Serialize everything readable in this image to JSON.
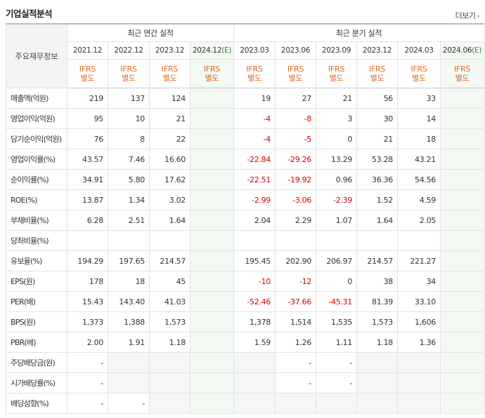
{
  "header": {
    "title": "기업실적분석",
    "more_label": "더보기",
    "more_icon": "chevron-right-icon"
  },
  "table": {
    "rowhead_label": "주요재무정보",
    "annual_group_label": "최근 연간 실적",
    "quarter_group_label": "최근 분기 실적",
    "periods": [
      {
        "label": "2021.12",
        "est": ""
      },
      {
        "label": "2022.12",
        "est": ""
      },
      {
        "label": "2023.12",
        "est": ""
      },
      {
        "label": "2024.12",
        "est": "(E)"
      },
      {
        "label": "2023.03",
        "est": ""
      },
      {
        "label": "2023.06",
        "est": ""
      },
      {
        "label": "2023.09",
        "est": ""
      },
      {
        "label": "2023.12",
        "est": ""
      },
      {
        "label": "2024.03",
        "est": ""
      },
      {
        "label": "2024.06",
        "est": "(E)"
      }
    ],
    "basis_line1": "IFRS",
    "basis_line2": "별도",
    "rows": [
      {
        "label": "매출액(억원)",
        "values": [
          "219",
          "137",
          "124",
          "",
          "19",
          "27",
          "21",
          "56",
          "33",
          ""
        ]
      },
      {
        "label": "영업이익(억원)",
        "values": [
          "95",
          "10",
          "21",
          "",
          "-4",
          "-8",
          "3",
          "30",
          "14",
          ""
        ]
      },
      {
        "label": "당기순이익(억원)",
        "values": [
          "76",
          "8",
          "22",
          "",
          "-4",
          "-5",
          "0",
          "21",
          "18",
          ""
        ]
      },
      {
        "label": "영업이익률(%)",
        "values": [
          "43.57",
          "7.46",
          "16.60",
          "",
          "-22.84",
          "-29.26",
          "13.29",
          "53.28",
          "43.21",
          ""
        ]
      },
      {
        "label": "순이익률(%)",
        "values": [
          "34.91",
          "5.80",
          "17.62",
          "",
          "-22.51",
          "-19.92",
          "0.96",
          "36.36",
          "54.56",
          ""
        ]
      },
      {
        "label": "ROE(%)",
        "values": [
          "13.87",
          "1.34",
          "3.02",
          "",
          "-2.99",
          "-3.06",
          "-2.39",
          "1.52",
          "4.59",
          ""
        ]
      },
      {
        "label": "부채비율(%)",
        "values": [
          "6.28",
          "2.51",
          "1.64",
          "",
          "2.04",
          "2.29",
          "1.07",
          "1.64",
          "2.05",
          ""
        ]
      },
      {
        "label": "당좌비율(%)",
        "values": [
          "",
          "",
          "",
          "",
          "",
          "",
          "",
          "",
          "",
          ""
        ]
      },
      {
        "label": "유보율(%)",
        "values": [
          "194.29",
          "197.65",
          "214.57",
          "",
          "195.45",
          "202.90",
          "206.97",
          "214.57",
          "221.27",
          ""
        ]
      },
      {
        "label": "EPS(원)",
        "values": [
          "178",
          "18",
          "45",
          "",
          "-10",
          "-12",
          "0",
          "38",
          "34",
          ""
        ]
      },
      {
        "label": "PER(배)",
        "values": [
          "15.43",
          "143.40",
          "41.03",
          "",
          "-52.46",
          "-37.66",
          "-45.31",
          "81.39",
          "33.10",
          ""
        ]
      },
      {
        "label": "BPS(원)",
        "values": [
          "1,373",
          "1,388",
          "1,573",
          "",
          "1,378",
          "1,514",
          "1,535",
          "1,573",
          "1,606",
          ""
        ]
      },
      {
        "label": "PBR(배)",
        "values": [
          "2.00",
          "1.91",
          "1.18",
          "",
          "1.59",
          "1.26",
          "1.11",
          "1.18",
          "1.36",
          ""
        ]
      },
      {
        "label": "주당배당금(원)",
        "values": [
          "-",
          "",
          "",
          "",
          "",
          "-",
          "-",
          "",
          "",
          ""
        ]
      },
      {
        "label": "시가배당률(%)",
        "values": [
          "-",
          "",
          "",
          "",
          "",
          "-",
          "-",
          "",
          "",
          ""
        ]
      },
      {
        "label": "배당성향(%)",
        "values": [
          "-",
          "-",
          "",
          "",
          "",
          "",
          "",
          "",
          "",
          ""
        ]
      }
    ]
  },
  "colors": {
    "negative": "#d50000",
    "ifrs": "#e8661f",
    "estimate": "#2e8b3a",
    "estimate_bg": "#f3f9f3"
  }
}
